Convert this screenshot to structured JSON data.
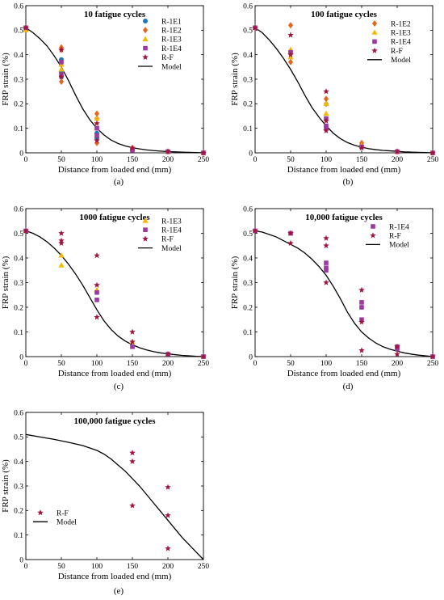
{
  "styles": {
    "R-1E1": {
      "marker": "circle",
      "color": "#1f77b4"
    },
    "R-1E2": {
      "marker": "diamond",
      "color": "#e8641b"
    },
    "R-1E3": {
      "marker": "triangle",
      "color": "#f5b800"
    },
    "R-1E4": {
      "marker": "square",
      "color": "#9b3aa0"
    },
    "R-F": {
      "marker": "star",
      "color": "#a3143c"
    },
    "Model": {
      "color": "#000000"
    }
  },
  "chart_data": [
    {
      "type": "scatter",
      "caption": "(a)",
      "title": "10 fatigue cycles",
      "xlabel": "Distance from loaded end (mm)",
      "ylabel": "FRP strain (%)",
      "xlim": [
        0,
        250
      ],
      "ylim": [
        0,
        0.6
      ],
      "xticks": [
        "0",
        "50",
        "100",
        "150",
        "200",
        "250"
      ],
      "yticks": [
        "0",
        "0.1",
        "0.2",
        "0.3",
        "0.4",
        "0.5",
        "0.6"
      ],
      "legend_position": "right",
      "series": [
        {
          "name": "R-1E1",
          "x": [
            0,
            50,
            50,
            50,
            100,
            100,
            150,
            200,
            250
          ],
          "y": [
            0.51,
            0.38,
            0.33,
            0.31,
            0.08,
            0.06,
            0.015,
            0.005,
            0
          ]
        },
        {
          "name": "R-1E2",
          "x": [
            0,
            0,
            50,
            50,
            50,
            100,
            100,
            100,
            150,
            200,
            250
          ],
          "y": [
            0.51,
            0.505,
            0.43,
            0.42,
            0.29,
            0.16,
            0.14,
            0.04,
            0.02,
            0.005,
            0
          ]
        },
        {
          "name": "R-1E3",
          "x": [
            0,
            50,
            50,
            100,
            100,
            150,
            200,
            250
          ],
          "y": [
            0.5,
            0.36,
            0.34,
            0.14,
            0.1,
            0.015,
            0.005,
            0
          ]
        },
        {
          "name": "R-1E4",
          "x": [
            0,
            50,
            50,
            100,
            100,
            150,
            200,
            250
          ],
          "y": [
            0.51,
            0.37,
            0.32,
            0.1,
            0.07,
            0.01,
            0.005,
            0
          ]
        },
        {
          "name": "R-F",
          "x": [
            0,
            50,
            50,
            100,
            100,
            150,
            200,
            250
          ],
          "y": [
            0.51,
            0.42,
            0.31,
            0.12,
            0.05,
            0.02,
            0.005,
            0
          ]
        },
        {
          "name": "Model",
          "line": true,
          "x": [
            0,
            10,
            20,
            30,
            40,
            50,
            60,
            70,
            80,
            90,
            100,
            110,
            120,
            130,
            140,
            150,
            160,
            170,
            180,
            190,
            200,
            210,
            220,
            230,
            240,
            250
          ],
          "y": [
            0.51,
            0.49,
            0.465,
            0.435,
            0.395,
            0.35,
            0.295,
            0.235,
            0.18,
            0.135,
            0.1,
            0.073,
            0.052,
            0.038,
            0.028,
            0.021,
            0.016,
            0.012,
            0.009,
            0.007,
            0.005,
            0.004,
            0.003,
            0.002,
            0.001,
            0
          ]
        }
      ]
    },
    {
      "type": "scatter",
      "caption": "(b)",
      "title": "100 fatigue cycles",
      "xlabel": "Distance from loaded end (mm)",
      "ylabel": "FRP strain (%)",
      "xlim": [
        0,
        250
      ],
      "ylim": [
        0,
        0.6
      ],
      "xticks": [
        "0",
        "50",
        "100",
        "150",
        "200",
        "250"
      ],
      "yticks": [
        "0",
        "0.1",
        "0.2",
        "0.3",
        "0.4",
        "0.5",
        "0.6"
      ],
      "legend_position": "right",
      "series": [
        {
          "name": "R-1E2",
          "x": [
            0,
            50,
            50,
            50,
            100,
            100,
            150,
            200,
            250
          ],
          "y": [
            0.51,
            0.52,
            0.41,
            0.37,
            0.22,
            0.2,
            0.04,
            0.005,
            0
          ]
        },
        {
          "name": "R-1E3",
          "x": [
            0,
            50,
            50,
            100,
            100,
            150,
            200,
            250
          ],
          "y": [
            0.51,
            0.42,
            0.39,
            0.2,
            0.16,
            0.03,
            0.005,
            0
          ]
        },
        {
          "name": "R-1E4",
          "x": [
            0,
            50,
            100,
            100,
            100,
            150,
            200,
            250
          ],
          "y": [
            0.51,
            0.41,
            0.14,
            0.11,
            0.1,
            0.025,
            0.005,
            0
          ]
        },
        {
          "name": "R-F",
          "x": [
            0,
            50,
            50,
            100,
            100,
            100,
            150,
            200,
            250
          ],
          "y": [
            0.51,
            0.48,
            0.4,
            0.25,
            0.13,
            0.09,
            0.02,
            0.005,
            0
          ]
        },
        {
          "name": "Model",
          "line": true,
          "x": [
            0,
            10,
            20,
            30,
            40,
            50,
            60,
            70,
            80,
            90,
            100,
            110,
            120,
            130,
            140,
            150,
            160,
            170,
            180,
            190,
            200,
            210,
            220,
            230,
            240,
            250
          ],
          "y": [
            0.51,
            0.49,
            0.46,
            0.425,
            0.385,
            0.34,
            0.29,
            0.235,
            0.185,
            0.145,
            0.11,
            0.08,
            0.058,
            0.042,
            0.031,
            0.023,
            0.017,
            0.013,
            0.01,
            0.008,
            0.006,
            0.004,
            0.003,
            0.002,
            0.001,
            0
          ]
        }
      ]
    },
    {
      "type": "scatter",
      "caption": "(c)",
      "title": "1000 fatigue cycles",
      "xlabel": "Distance from loaded end (mm)",
      "ylabel": "FRP strain (%)",
      "xlim": [
        0,
        250
      ],
      "ylim": [
        0,
        0.6
      ],
      "xticks": [
        "0",
        "50",
        "100",
        "150",
        "200",
        "250"
      ],
      "yticks": [
        "0",
        "0.1",
        "0.2",
        "0.3",
        "0.4",
        "0.5",
        "0.6"
      ],
      "legend_position": "right",
      "series": [
        {
          "name": "R-1E3",
          "x": [
            0,
            50,
            50,
            100,
            150,
            200,
            250
          ],
          "y": [
            0.51,
            0.41,
            0.37,
            0.27,
            0.06,
            0.01,
            0
          ]
        },
        {
          "name": "R-1E4",
          "x": [
            0,
            100,
            100,
            150,
            200,
            250
          ],
          "y": [
            0.51,
            0.26,
            0.23,
            0.04,
            0.01,
            0
          ]
        },
        {
          "name": "R-F",
          "x": [
            0,
            50,
            50,
            50,
            100,
            100,
            100,
            150,
            150,
            200,
            250
          ],
          "y": [
            0.51,
            0.5,
            0.47,
            0.46,
            0.41,
            0.29,
            0.16,
            0.1,
            0.06,
            0.01,
            0
          ]
        },
        {
          "name": "Model",
          "line": true,
          "x": [
            0,
            10,
            20,
            30,
            40,
            50,
            60,
            70,
            80,
            90,
            100,
            110,
            120,
            130,
            140,
            150,
            160,
            170,
            180,
            190,
            200,
            210,
            220,
            230,
            240,
            250
          ],
          "y": [
            0.51,
            0.5,
            0.485,
            0.465,
            0.44,
            0.41,
            0.375,
            0.335,
            0.29,
            0.24,
            0.19,
            0.145,
            0.11,
            0.083,
            0.063,
            0.048,
            0.036,
            0.027,
            0.02,
            0.015,
            0.011,
            0.008,
            0.005,
            0.003,
            0.001,
            0
          ]
        }
      ]
    },
    {
      "type": "scatter",
      "caption": "(d)",
      "title": "10,000 fatigue cycles",
      "xlabel": "Distance from loaded end (mm)",
      "ylabel": "FRP strain (%)",
      "xlim": [
        0,
        250
      ],
      "ylim": [
        0,
        0.6
      ],
      "xticks": [
        "0",
        "50",
        "100",
        "150",
        "200",
        "250"
      ],
      "yticks": [
        "0",
        "0.1",
        "0.2",
        "0.3",
        "0.4",
        "0.5",
        "0.6"
      ],
      "legend_position": "right",
      "series": [
        {
          "name": "R-1E4",
          "x": [
            0,
            50,
            100,
            100,
            100,
            150,
            150,
            150,
            200,
            200,
            250
          ],
          "y": [
            0.51,
            0.5,
            0.38,
            0.36,
            0.35,
            0.22,
            0.2,
            0.15,
            0.04,
            0.03,
            0
          ]
        },
        {
          "name": "R-F",
          "x": [
            0,
            50,
            50,
            100,
            100,
            100,
            150,
            150,
            150,
            200,
            200,
            250
          ],
          "y": [
            0.51,
            0.5,
            0.46,
            0.48,
            0.45,
            0.3,
            0.27,
            0.14,
            0.025,
            0.04,
            0.01,
            0
          ]
        },
        {
          "name": "Model",
          "line": true,
          "x": [
            0,
            10,
            20,
            30,
            40,
            50,
            60,
            70,
            80,
            90,
            100,
            110,
            120,
            130,
            140,
            150,
            160,
            170,
            180,
            190,
            200,
            210,
            220,
            230,
            240,
            250
          ],
          "y": [
            0.51,
            0.505,
            0.495,
            0.485,
            0.47,
            0.455,
            0.44,
            0.42,
            0.395,
            0.365,
            0.33,
            0.285,
            0.235,
            0.18,
            0.135,
            0.1,
            0.075,
            0.055,
            0.04,
            0.03,
            0.022,
            0.015,
            0.01,
            0.006,
            0.003,
            0
          ]
        }
      ]
    },
    {
      "type": "scatter",
      "caption": "(e)",
      "title": "100,000 fatigue cycles",
      "xlabel": "Distance from loaded end (mm)",
      "ylabel": "FRP strain (%)",
      "xlim": [
        0,
        250
      ],
      "ylim": [
        0,
        0.6
      ],
      "xticks": [
        "0",
        "50",
        "100",
        "150",
        "200",
        "250"
      ],
      "yticks": [
        "0",
        "0.1",
        "0.2",
        "0.3",
        "0.4",
        "0.5",
        "0.6"
      ],
      "legend_position": "left",
      "series": [
        {
          "name": "R-F",
          "x": [
            150,
            150,
            150,
            200,
            200,
            200
          ],
          "y": [
            0.435,
            0.4,
            0.22,
            0.295,
            0.18,
            0.045
          ]
        },
        {
          "name": "Model",
          "line": true,
          "x": [
            0,
            20,
            40,
            60,
            80,
            100,
            110,
            120,
            130,
            140,
            150,
            160,
            170,
            180,
            190,
            200,
            210,
            220,
            230,
            240,
            250
          ],
          "y": [
            0.51,
            0.5,
            0.49,
            0.478,
            0.465,
            0.445,
            0.43,
            0.41,
            0.385,
            0.36,
            0.33,
            0.3,
            0.265,
            0.23,
            0.195,
            0.16,
            0.125,
            0.09,
            0.06,
            0.03,
            0
          ]
        }
      ]
    }
  ]
}
